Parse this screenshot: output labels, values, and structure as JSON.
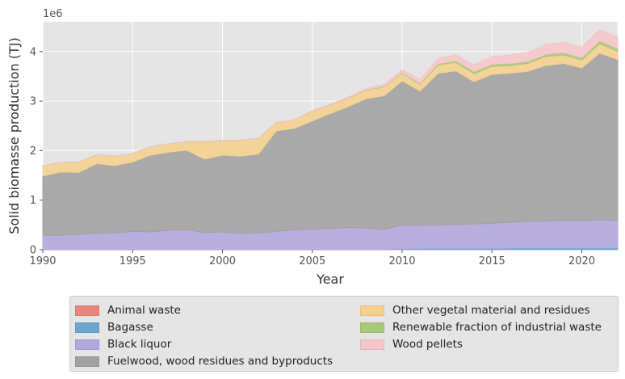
{
  "chart_data": {
    "type": "area",
    "stacked": true,
    "xlabel": "Year",
    "ylabel": "Solid biomasse production (TJ)",
    "y_offset_text": "1e6",
    "xlim": [
      1990,
      2022
    ],
    "ylim": [
      0,
      4.6
    ],
    "x_ticks": [
      1990,
      1995,
      2000,
      2005,
      2010,
      2015,
      2020
    ],
    "y_ticks": [
      0,
      1,
      2,
      3,
      4
    ],
    "grid": true,
    "legend_position": "below",
    "x": [
      1990,
      1991,
      1992,
      1993,
      1994,
      1995,
      1996,
      1997,
      1998,
      1999,
      2000,
      2001,
      2002,
      2003,
      2004,
      2005,
      2006,
      2007,
      2008,
      2009,
      2010,
      2011,
      2012,
      2013,
      2014,
      2015,
      2016,
      2017,
      2018,
      2019,
      2020,
      2021,
      2022
    ],
    "series": [
      {
        "name": "Animal waste",
        "color": "#e8877a",
        "values": [
          0.004,
          0.004,
          0.004,
          0.004,
          0.004,
          0.004,
          0.004,
          0.004,
          0.004,
          0.004,
          0.004,
          0.004,
          0.004,
          0.004,
          0.004,
          0.004,
          0.004,
          0.004,
          0.004,
          0.004,
          0.005,
          0.005,
          0.005,
          0.005,
          0.005,
          0.005,
          0.005,
          0.005,
          0.005,
          0.005,
          0.005,
          0.005,
          0.005
        ]
      },
      {
        "name": "Bagasse",
        "color": "#6fa6cf",
        "values": [
          0.005,
          0.005,
          0.005,
          0.005,
          0.005,
          0.005,
          0.005,
          0.005,
          0.005,
          0.005,
          0.005,
          0.005,
          0.005,
          0.005,
          0.005,
          0.005,
          0.005,
          0.005,
          0.005,
          0.005,
          0.01,
          0.02,
          0.025,
          0.025,
          0.025,
          0.025,
          0.03,
          0.035,
          0.035,
          0.035,
          0.035,
          0.035,
          0.035
        ]
      },
      {
        "name": "Black liquor",
        "color": "#b2a8de",
        "values": [
          0.28,
          0.28,
          0.3,
          0.32,
          0.33,
          0.36,
          0.35,
          0.38,
          0.39,
          0.34,
          0.35,
          0.32,
          0.33,
          0.36,
          0.39,
          0.41,
          0.42,
          0.44,
          0.43,
          0.4,
          0.48,
          0.47,
          0.47,
          0.48,
          0.49,
          0.5,
          0.52,
          0.53,
          0.54,
          0.55,
          0.55,
          0.56,
          0.55
        ]
      },
      {
        "name": "Fuelwood, wood residues and byproducts",
        "color": "#a2a2a2",
        "values": [
          1.2,
          1.28,
          1.25,
          1.41,
          1.36,
          1.4,
          1.55,
          1.58,
          1.61,
          1.48,
          1.55,
          1.56,
          1.59,
          2.03,
          2.05,
          2.18,
          2.32,
          2.44,
          2.61,
          2.7,
          2.91,
          2.71,
          3.06,
          3.1,
          2.87,
          3.01,
          3.01,
          3.03,
          3.14,
          3.17,
          3.08,
          3.37,
          3.25
        ]
      },
      {
        "name": "Other vegetal material and residues",
        "color": "#f5d08f",
        "values": [
          0.21,
          0.19,
          0.21,
          0.18,
          0.19,
          0.17,
          0.17,
          0.17,
          0.17,
          0.35,
          0.3,
          0.32,
          0.32,
          0.17,
          0.17,
          0.2,
          0.17,
          0.17,
          0.17,
          0.18,
          0.16,
          0.13,
          0.17,
          0.17,
          0.16,
          0.16,
          0.15,
          0.16,
          0.18,
          0.17,
          0.16,
          0.19,
          0.16
        ]
      },
      {
        "name": "Renewable fraction of industrial waste",
        "color": "#a9c97a",
        "values": [
          0.002,
          0.002,
          0.002,
          0.002,
          0.002,
          0.002,
          0.002,
          0.002,
          0.002,
          0.002,
          0.002,
          0.002,
          0.002,
          0.002,
          0.002,
          0.005,
          0.006,
          0.008,
          0.01,
          0.012,
          0.015,
          0.02,
          0.025,
          0.035,
          0.045,
          0.045,
          0.045,
          0.045,
          0.045,
          0.05,
          0.05,
          0.06,
          0.06
        ]
      },
      {
        "name": "Wood pellets",
        "color": "#f5c6c9",
        "values": [
          0,
          0,
          0,
          0,
          0,
          0,
          0,
          0,
          0,
          0,
          0,
          0,
          0,
          0,
          0,
          0,
          0.01,
          0.015,
          0.025,
          0.035,
          0.055,
          0.08,
          0.11,
          0.12,
          0.14,
          0.16,
          0.17,
          0.18,
          0.2,
          0.21,
          0.21,
          0.23,
          0.23
        ]
      }
    ]
  }
}
